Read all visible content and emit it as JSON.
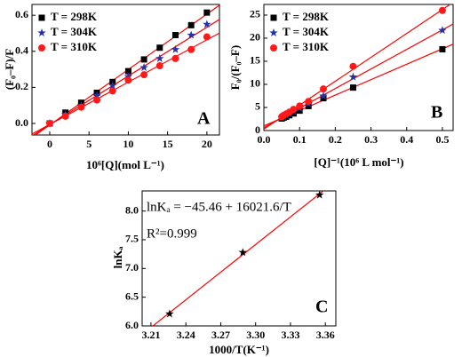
{
  "chart_data": [
    {
      "type": "scatter",
      "x_label": "10⁶[Q](mol L⁻¹)",
      "y_label": "(F₀–F)/F",
      "annotations": [
        "A"
      ],
      "xlim": [
        -2.26,
        21.6
      ],
      "ylim": [
        -0.064,
        0.66
      ],
      "xticks": [
        0,
        5,
        10,
        15,
        20
      ],
      "yticks": [
        {
          "value": 0,
          "label": "0.0"
        },
        0.2,
        0.4,
        0.6
      ],
      "fit_line_color": "#ff0000",
      "legend": "upper left",
      "x": [
        0,
        2,
        4,
        6,
        8,
        10,
        12,
        14,
        16,
        18,
        20
      ],
      "series": [
        {
          "name": "T = 298K",
          "color": "#000000",
          "marker": "square",
          "values": [
            0,
            0.06,
            0.115,
            0.17,
            0.23,
            0.29,
            0.355,
            0.42,
            0.49,
            0.545,
            0.615
          ]
        },
        {
          "name": "T = 304K",
          "color": "#2233aa",
          "marker": "star",
          "values": [
            0,
            0.05,
            0.1,
            0.155,
            0.21,
            0.26,
            0.31,
            0.36,
            0.41,
            0.49,
            0.55
          ]
        },
        {
          "name": "T = 310K",
          "color": "#ff1a1a",
          "marker": "circle",
          "values": [
            0,
            0.04,
            0.09,
            0.13,
            0.18,
            0.24,
            0.27,
            0.32,
            0.36,
            0.41,
            0.48
          ]
        }
      ]
    },
    {
      "type": "scatter",
      "x_label": "[Q]⁻¹(10⁶ L mol⁻¹)",
      "y_label": "F₀/(F₀–F)",
      "annotations": [
        "B"
      ],
      "xlim": [
        0,
        0.53
      ],
      "ylim": [
        0,
        27.3
      ],
      "xticks": [
        {
          "value": 0,
          "label": "0.0"
        },
        0.1,
        0.2,
        0.3,
        0.4,
        0.5
      ],
      "yticks": [
        0,
        5,
        10,
        15,
        20,
        25
      ],
      "fit_line_color": "#ff0000",
      "legend": "upper left",
      "x": [
        0.05,
        0.0556,
        0.0625,
        0.0714,
        0.0833,
        0.1,
        0.125,
        0.1667,
        0.25,
        0.5
      ],
      "series": [
        {
          "name": "T = 298K",
          "color": "#000000",
          "marker": "square",
          "values": [
            2.6,
            2.8,
            3.0,
            3.3,
            3.7,
            4.3,
            5.3,
            7.0,
            9.3,
            17.6
          ]
        },
        {
          "name": "T = 304K",
          "color": "#2233aa",
          "marker": "star",
          "values": [
            2.8,
            3.0,
            3.3,
            3.6,
            4.1,
            4.8,
            5.8,
            7.5,
            11.6,
            21.7
          ]
        },
        {
          "name": "T = 310K",
          "color": "#ff1a1a",
          "marker": "circle",
          "values": [
            3.0,
            3.3,
            3.6,
            4.0,
            4.6,
            5.3,
            6.3,
            9.0,
            13.9,
            26.0
          ]
        }
      ]
    },
    {
      "type": "scatter",
      "x_label": "1000/T(K⁻¹)",
      "y_label": "lnKₐ",
      "annotations": [
        "C",
        "lnKₐ = −45.46 + 16021.6/T",
        "R²=0.999"
      ],
      "xlim": [
        3.2024,
        3.369
      ],
      "ylim": [
        6.0,
        8.35
      ],
      "xticks": [
        3.21,
        3.24,
        3.27,
        {
          "value": 3.3,
          "label": "3.30"
        },
        3.33,
        3.36
      ],
      "yticks": [
        {
          "value": 6,
          "label": "6.0"
        },
        6.5,
        {
          "value": 7,
          "label": "7.0"
        },
        7.5,
        {
          "value": 8,
          "label": "8.0"
        }
      ],
      "fit_line_color": "#ff0000",
      "x": [
        3.226,
        3.289,
        3.355
      ],
      "series": [
        {
          "color": "#000000",
          "marker": "star",
          "values": [
            6.21,
            7.28,
            8.28
          ]
        }
      ]
    }
  ]
}
